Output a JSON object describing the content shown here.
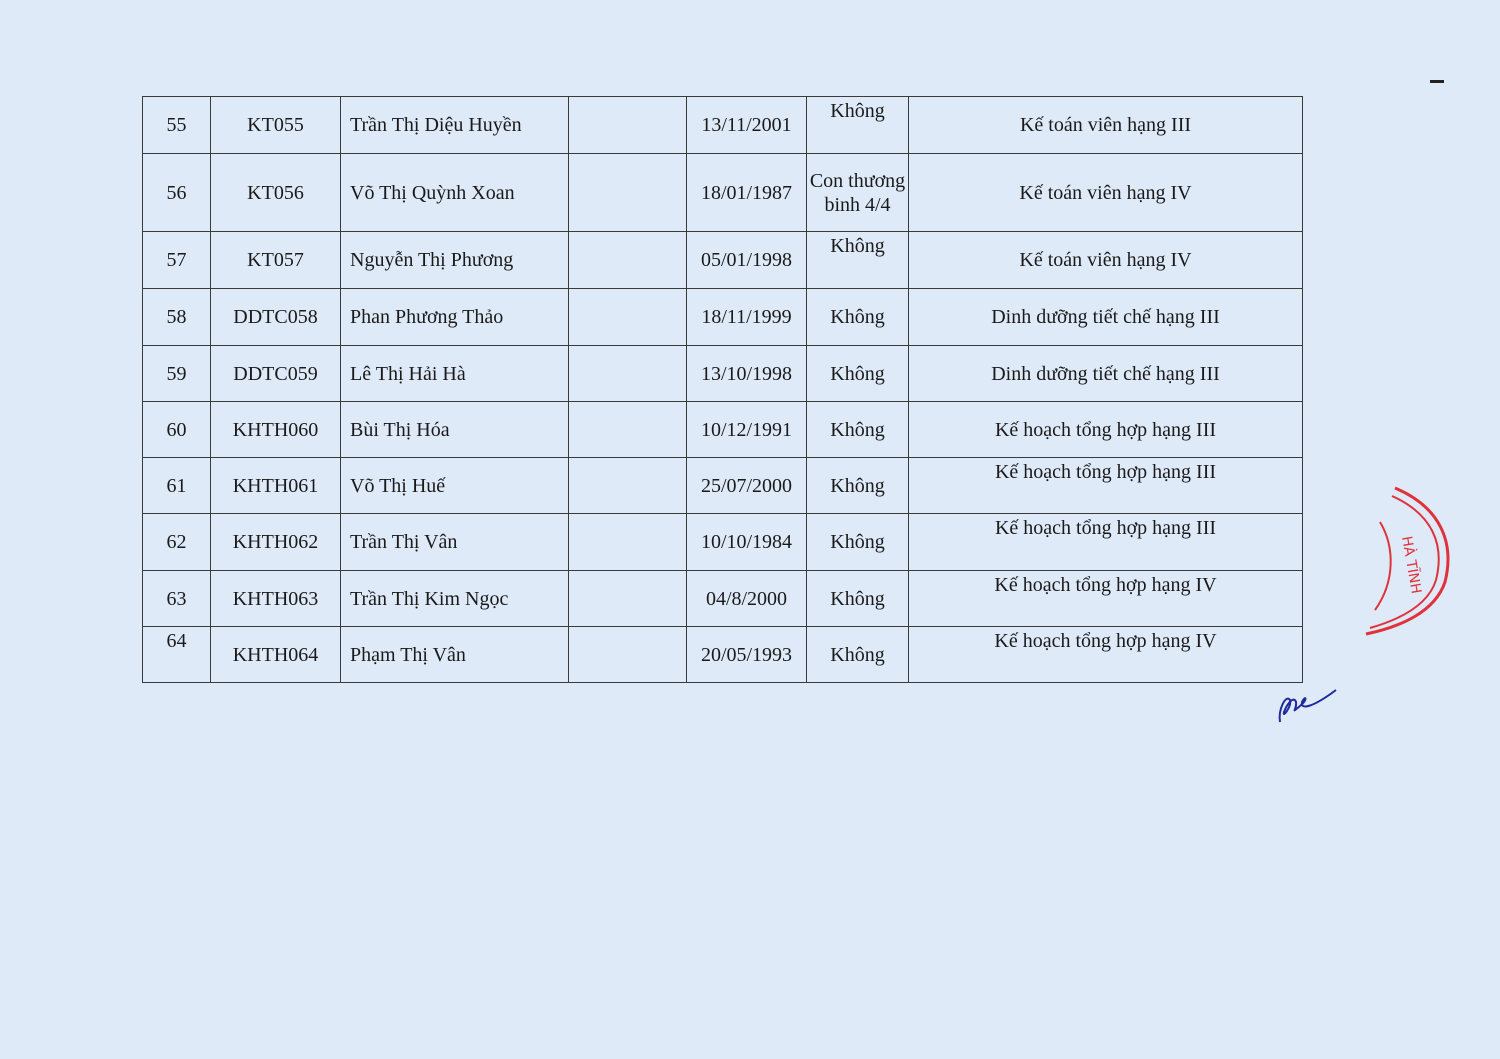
{
  "rows": [
    {
      "no": "55",
      "code": "KT055",
      "name": "Trần Thị Diệu Huyền",
      "blank": "",
      "dob": "13/11/2001",
      "priority": "Không",
      "position": "Kế toán viên hạng III"
    },
    {
      "no": "56",
      "code": "KT056",
      "name": "Võ Thị Quỳnh Xoan",
      "blank": "",
      "dob": "18/01/1987",
      "priority": "Con thương binh 4/4",
      "position": "Kế toán viên hạng IV"
    },
    {
      "no": "57",
      "code": "KT057",
      "name": "Nguyễn Thị Phương",
      "blank": "",
      "dob": "05/01/1998",
      "priority": "Không",
      "position": "Kế toán viên hạng IV"
    },
    {
      "no": "58",
      "code": "DDTC058",
      "name": "Phan Phương Thảo",
      "blank": "",
      "dob": "18/11/1999",
      "priority": "Không",
      "position": "Dinh dưỡng tiết chế hạng III"
    },
    {
      "no": "59",
      "code": "DDTC059",
      "name": "Lê Thị Hải Hà",
      "blank": "",
      "dob": "13/10/1998",
      "priority": "Không",
      "position": "Dinh dưỡng tiết chế hạng III"
    },
    {
      "no": "60",
      "code": "KHTH060",
      "name": "Bùi Thị Hóa",
      "blank": "",
      "dob": "10/12/1991",
      "priority": "Không",
      "position": "Kế hoạch tổng hợp hạng III"
    },
    {
      "no": "61",
      "code": "KHTH061",
      "name": "Võ Thị Huế",
      "blank": "",
      "dob": "25/07/2000",
      "priority": "Không",
      "position": "Kế hoạch tổng hợp hạng III"
    },
    {
      "no": "62",
      "code": "KHTH062",
      "name": "Trần Thị Vân",
      "blank": "",
      "dob": "10/10/1984",
      "priority": "Không",
      "position": "Kế hoạch tổng hợp hạng III"
    },
    {
      "no": "63",
      "code": "KHTH063",
      "name": "Trần Thị Kim Ngọc",
      "blank": "",
      "dob": "04/8/2000",
      "priority": "Không",
      "position": "Kế hoạch tổng hợp hạng IV"
    },
    {
      "no": "64",
      "code": "KHTH064",
      "name": "Phạm Thị Vân",
      "blank": "",
      "dob": "20/05/1993",
      "priority": "Không",
      "position": "Kế hoạch tổng hợp hạng IV"
    }
  ],
  "stamp": {
    "text": "HÀ TĨNH",
    "color": "#e0323a"
  },
  "signature": {
    "color": "#1f2a9c"
  }
}
